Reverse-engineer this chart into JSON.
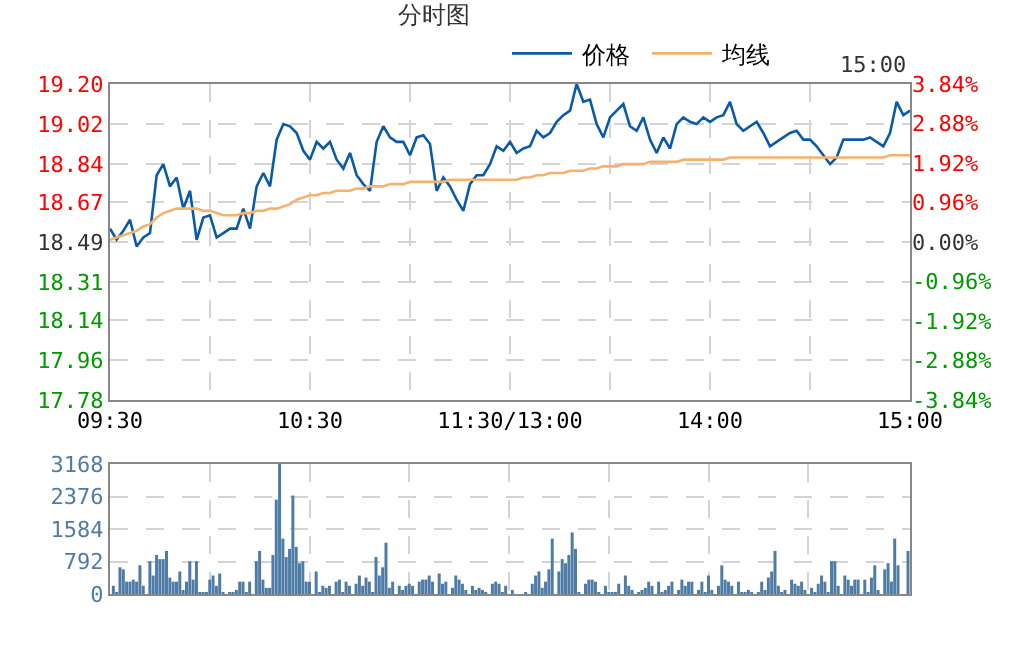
{
  "chart_data": [
    {
      "type": "line",
      "title": "分时图",
      "annotations": [
        "15:00"
      ],
      "legend": "top",
      "grid": true,
      "marker": "none",
      "categories": [
        "09:30",
        null,
        null,
        null,
        null,
        null,
        null,
        null,
        null,
        null,
        null,
        null,
        null,
        null,
        null,
        null,
        null,
        null,
        null,
        null,
        null,
        null,
        null,
        null,
        null,
        null,
        null,
        null,
        null,
        null,
        "10:30",
        null,
        null,
        null,
        null,
        null,
        null,
        null,
        null,
        null,
        null,
        null,
        null,
        null,
        null,
        null,
        null,
        null,
        null,
        null,
        null,
        null,
        null,
        null,
        null,
        null,
        null,
        null,
        null,
        null,
        "11:30/13:00",
        null,
        null,
        null,
        null,
        null,
        null,
        null,
        null,
        null,
        null,
        null,
        null,
        null,
        null,
        null,
        null,
        null,
        null,
        null,
        null,
        null,
        null,
        null,
        null,
        null,
        null,
        null,
        null,
        null,
        "14:00",
        null,
        null,
        null,
        null,
        null,
        null,
        null,
        null,
        null,
        null,
        null,
        null,
        null,
        null,
        null,
        null,
        null,
        null,
        null,
        null,
        null,
        null,
        null,
        null,
        null,
        null,
        null,
        null,
        null,
        "15:00"
      ],
      "ylim": [
        17.78,
        19.2
      ],
      "yticks": [
        17.78,
        17.96,
        18.14,
        18.31,
        18.49,
        18.67,
        18.84,
        19.02,
        {
          "value": 19.2,
          "label": "19.20"
        }
      ],
      "y2lim": [
        -3.84,
        3.84
      ],
      "y2ticks": [
        {
          "value": -3.84,
          "label": "-3.84%"
        },
        {
          "value": -2.88,
          "label": "-2.88%"
        },
        {
          "value": -1.92,
          "label": "-1.92%"
        },
        {
          "value": -0.96,
          "label": "-0.96%"
        },
        {
          "value": 0,
          "label": "0.00%"
        },
        {
          "value": 0.96,
          "label": "0.96%"
        },
        {
          "value": 1.92,
          "label": "1.92%"
        },
        {
          "value": 2.88,
          "label": "2.88%"
        },
        {
          "value": 3.84,
          "label": "3.84%"
        }
      ],
      "series": [
        {
          "name": "价格",
          "color": "#0a5aa8",
          "values": [
            18.55,
            18.5,
            18.54,
            18.59,
            18.47,
            18.51,
            18.53,
            18.79,
            18.84,
            18.74,
            18.78,
            18.64,
            18.72,
            18.5,
            18.6,
            18.61,
            18.51,
            18.53,
            18.55,
            18.55,
            18.64,
            18.55,
            18.74,
            18.8,
            18.74,
            18.95,
            19.02,
            19.01,
            18.98,
            18.9,
            18.86,
            18.94,
            18.91,
            18.94,
            18.86,
            18.82,
            18.89,
            18.79,
            18.75,
            18.72,
            18.94,
            19.01,
            18.96,
            18.94,
            18.94,
            18.88,
            18.96,
            18.97,
            18.93,
            18.72,
            18.78,
            18.74,
            18.68,
            18.63,
            18.75,
            18.79,
            18.79,
            18.84,
            18.92,
            18.9,
            18.94,
            18.89,
            18.91,
            18.92,
            18.99,
            18.96,
            18.98,
            19.03,
            19.06,
            19.08,
            19.2,
            19.12,
            19.13,
            19.02,
            18.96,
            19.05,
            19.08,
            19.11,
            19.01,
            18.99,
            19.05,
            18.95,
            18.89,
            18.96,
            18.91,
            19.02,
            19.05,
            19.03,
            19.02,
            19.05,
            19.03,
            19.05,
            19.06,
            19.12,
            19.02,
            18.99,
            19.01,
            19.03,
            18.98,
            18.92,
            18.94,
            18.96,
            18.98,
            18.99,
            18.95,
            18.95,
            18.92,
            18.88,
            18.84,
            18.87,
            18.95,
            18.95,
            18.95,
            18.95,
            18.96,
            18.94,
            18.92,
            18.98,
            19.12,
            19.06,
            19.08
          ]
        },
        {
          "name": "均线",
          "color": "#f4b26e",
          "values": [
            18.5,
            18.51,
            18.52,
            18.53,
            18.54,
            18.56,
            18.57,
            18.6,
            18.62,
            18.63,
            18.64,
            18.64,
            18.64,
            18.64,
            18.63,
            18.63,
            18.62,
            18.61,
            18.61,
            18.61,
            18.62,
            18.62,
            18.63,
            18.63,
            18.64,
            18.64,
            18.65,
            18.66,
            18.68,
            18.69,
            18.7,
            18.7,
            18.71,
            18.71,
            18.72,
            18.72,
            18.72,
            18.73,
            18.73,
            18.74,
            18.74,
            18.74,
            18.75,
            18.75,
            18.75,
            18.76,
            18.76,
            18.76,
            18.76,
            18.76,
            18.76,
            18.77,
            18.77,
            18.77,
            18.77,
            18.77,
            18.77,
            18.77,
            18.77,
            18.77,
            18.77,
            18.77,
            18.78,
            18.78,
            18.79,
            18.79,
            18.8,
            18.8,
            18.8,
            18.81,
            18.81,
            18.81,
            18.82,
            18.82,
            18.83,
            18.83,
            18.83,
            18.84,
            18.84,
            18.84,
            18.84,
            18.85,
            18.85,
            18.85,
            18.85,
            18.85,
            18.86,
            18.86,
            18.86,
            18.86,
            18.86,
            18.86,
            18.86,
            18.87,
            18.87,
            18.87,
            18.87,
            18.87,
            18.87,
            18.87,
            18.87,
            18.87,
            18.87,
            18.87,
            18.87,
            18.87,
            18.87,
            18.87,
            18.87,
            18.87,
            18.87,
            18.87,
            18.87,
            18.87,
            18.87,
            18.87,
            18.87,
            18.88,
            18.88,
            18.88,
            18.88
          ]
        }
      ]
    },
    {
      "type": "bar",
      "color": "#4f7ca6",
      "grid": true,
      "tick_labels": "y",
      "categories": [
        null,
        null,
        null,
        null,
        null,
        null,
        null,
        null,
        null,
        null,
        null,
        null,
        null,
        null,
        null,
        null,
        null,
        null,
        null,
        null,
        null,
        null,
        null,
        null,
        null,
        null,
        null,
        null,
        null,
        null,
        null,
        null,
        null,
        null,
        null,
        null,
        null,
        null,
        null,
        null,
        null,
        null,
        null,
        null,
        null,
        null,
        null,
        null,
        null,
        null,
        null,
        null,
        null,
        null,
        null,
        null,
        null,
        null,
        null,
        null,
        null,
        null,
        null,
        null,
        null,
        null,
        null,
        null,
        null,
        null,
        null,
        null,
        null,
        null,
        null,
        null,
        null,
        null,
        null,
        null,
        null,
        null,
        null,
        null,
        null,
        null,
        null,
        null,
        null,
        null,
        null,
        null,
        null,
        null,
        null,
        null,
        null,
        null,
        null,
        null,
        null,
        null,
        null,
        null,
        null,
        null,
        null,
        null,
        null,
        null,
        null,
        null,
        null,
        null,
        null,
        null,
        null,
        null,
        null,
        null,
        null,
        null,
        null,
        null,
        null,
        null,
        null,
        null,
        null,
        null,
        null,
        null,
        null,
        null,
        null,
        null,
        null,
        null,
        null,
        null,
        null,
        null,
        null,
        null,
        null,
        null,
        null,
        null,
        null,
        null,
        null,
        null,
        null,
        null,
        null,
        null,
        null,
        null,
        null,
        null,
        null,
        null,
        null,
        null,
        null,
        null,
        null,
        null,
        null,
        null,
        null,
        null,
        null,
        null,
        null,
        null,
        null,
        null,
        null,
        null,
        null,
        null,
        null,
        null,
        null,
        null,
        null,
        null,
        null,
        null,
        null,
        null,
        null,
        null,
        null,
        null,
        null,
        null,
        null,
        null,
        null,
        null,
        null,
        null,
        null,
        null,
        null,
        null,
        null,
        null,
        null,
        null,
        null,
        null,
        null,
        null,
        null,
        null,
        null,
        null,
        null,
        null,
        null,
        null,
        null,
        null,
        null,
        null,
        null,
        null,
        null,
        null,
        null,
        null,
        null,
        null,
        null,
        null,
        null,
        null,
        null
      ],
      "ylim": [
        0,
        3168
      ],
      "yticks": [
        0,
        792,
        1584,
        2376,
        3168
      ],
      "values": [
        null,
        200,
        50,
        650,
        600,
        300,
        300,
        350,
        300,
        700,
        200,
        null,
        800,
        450,
        950,
        850,
        850,
        1050,
        400,
        300,
        300,
        550,
        100,
        300,
        800,
        350,
        800,
        50,
        50,
        50,
        350,
        450,
        200,
        500,
        50,
        null,
        50,
        50,
        100,
        300,
        300,
        50,
        300,
        null,
        800,
        1050,
        350,
        150,
        150,
        950,
        2300,
        3168,
        1350,
        900,
        1100,
        2400,
        1150,
        750,
        800,
        300,
        300,
        null,
        550,
        50,
        200,
        150,
        200,
        null,
        300,
        350,
        50,
        300,
        200,
        null,
        250,
        450,
        200,
        400,
        300,
        50,
        900,
        450,
        650,
        1250,
        150,
        300,
        null,
        200,
        100,
        200,
        250,
        200,
        null,
        300,
        350,
        350,
        450,
        300,
        null,
        500,
        250,
        300,
        null,
        150,
        450,
        350,
        250,
        100,
        null,
        200,
        100,
        150,
        100,
        50,
        null,
        250,
        300,
        250,
        50,
        200,
        null,
        100,
        null,
        null,
        null,
        50,
        null,
        250,
        450,
        550,
        150,
        300,
        600,
        1350,
        null,
        550,
        850,
        750,
        950,
        1500,
        1100,
        50,
        null,
        250,
        350,
        350,
        300,
        50,
        null,
        200,
        50,
        50,
        50,
        250,
        null,
        450,
        200,
        100,
        null,
        50,
        100,
        150,
        300,
        200,
        null,
        300,
        50,
        100,
        200,
        300,
        null,
        100,
        350,
        200,
        300,
        300,
        null,
        100,
        300,
        50,
        450,
        100,
        null,
        200,
        700,
        350,
        300,
        200,
        null,
        300,
        50,
        50,
        100,
        50,
        null,
        50,
        300,
        100,
        400,
        550,
        1050,
        200,
        50,
        100,
        null,
        350,
        250,
        200,
        300,
        100,
        null,
        150,
        50,
        250,
        450,
        300,
        50,
        800,
        800,
        200,
        null,
        450,
        350,
        200,
        350,
        350,
        null,
        350,
        50,
        400,
        700,
        100,
        null,
        600,
        750,
        300,
        1350,
        700,
        null,
        null,
        1050
      ]
    }
  ]
}
